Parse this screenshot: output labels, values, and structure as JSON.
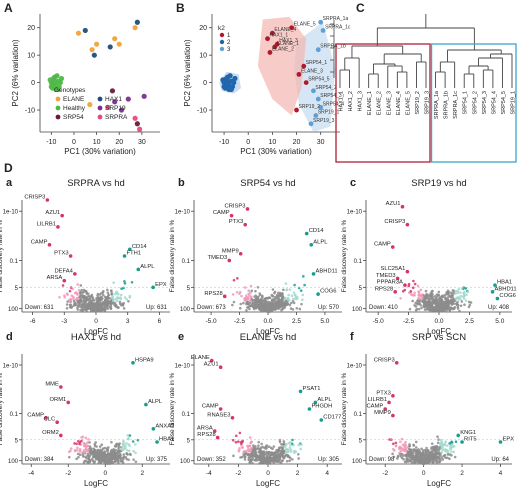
{
  "figure": {
    "row_letters": [
      "A",
      "B",
      "C",
      "D"
    ]
  },
  "colors": {
    "pink": "#D6336C",
    "pink_light": "#EE9ABB",
    "teal": "#139E8E",
    "teal_light": "#A3D9CE",
    "gray": "#8C8C8C",
    "elane": "#F0A33A",
    "hax1": "#1F4E79",
    "healthy": "#4FB848",
    "srp19": "#7A2E8E",
    "srp54": "#6B1A3E",
    "srpra": "#E84A78",
    "k1": "#B2182B",
    "k2": "#2166AC",
    "k3": "#5E9FD6",
    "hull_red": "#F4B6B0",
    "hull_blue": "#C5DCF0",
    "dendro_red": "#B21F3A",
    "dendro_blue": "#3AA7C8"
  },
  "chart_data": [
    {
      "panel": "A",
      "type": "scatter",
      "xlabel": "PC1 (30% variation)",
      "ylabel": "PC2 (6% variation)",
      "xlim": [
        -15,
        38
      ],
      "ylim": [
        -18,
        25
      ],
      "xticks": [
        "-10",
        "0",
        "10",
        "20",
        "30"
      ],
      "yticks": [
        "-10",
        "0",
        "10",
        "20"
      ],
      "legend_title": "Genotypes",
      "legend": [
        "ELANE",
        "HAX1",
        "Healthy",
        "SRP19",
        "SRP54",
        "SRPRA"
      ],
      "series": [
        {
          "name": "Healthy",
          "points": [
            [
              -10,
              0
            ],
            [
              -9,
              1.5
            ],
            [
              -8,
              -1
            ],
            [
              -7,
              0.5
            ],
            [
              -9.5,
              -2
            ],
            [
              -8.5,
              2
            ],
            [
              -6.5,
              -1.5
            ],
            [
              -10.5,
              1
            ],
            [
              -7.5,
              2.5
            ],
            [
              -8,
              -2.5
            ],
            [
              -6,
              0
            ],
            [
              -9,
              -0.5
            ],
            [
              -7,
              -2.5
            ],
            [
              -10,
              -1.5
            ],
            [
              -5.5,
              1.5
            ],
            [
              -8.5,
              0.5
            ]
          ]
        },
        {
          "name": "ELANE",
          "points": [
            [
              2,
              18
            ],
            [
              8,
              12
            ],
            [
              10,
              14
            ],
            [
              20,
              14
            ],
            [
              18,
              16
            ],
            [
              27,
              20
            ],
            [
              7,
              -8
            ]
          ]
        },
        {
          "name": "HAX1",
          "points": [
            [
              5,
              19
            ],
            [
              9,
              10
            ],
            [
              16,
              13
            ],
            [
              28,
              22
            ]
          ]
        },
        {
          "name": "SRP19",
          "points": [
            [
              18,
              -7
            ],
            [
              24,
              -6
            ],
            [
              21,
              -10
            ],
            [
              31,
              -5
            ]
          ]
        },
        {
          "name": "SRP54",
          "points": [
            [
              17,
              -3
            ],
            [
              28,
              -15
            ]
          ]
        },
        {
          "name": "SRPRA",
          "points": [
            [
              15,
              -9
            ],
            [
              27,
              -13
            ],
            [
              29,
              -17
            ]
          ]
        }
      ]
    },
    {
      "panel": "B",
      "type": "scatter",
      "xlabel": "PC1 (30% variation)",
      "ylabel": "PC2 (6% variation)",
      "xlim": [
        -15,
        38
      ],
      "ylim": [
        -18,
        25
      ],
      "xticks": [
        "-10",
        "0",
        "10",
        "20",
        "30"
      ],
      "yticks": [
        "-10",
        "0",
        "10",
        "20"
      ],
      "legend_title": "k2",
      "legend": [
        "1",
        "2",
        "3"
      ],
      "labels": [
        "SRPRA_1a",
        "ELANE_5",
        "SRPRA_1c",
        "ELANE_4",
        "HAX1_1",
        "HAX1_3",
        "ELANE_1",
        "SRPRA_1b",
        "ELANE_2",
        "SRP54_1",
        "ELANE_3",
        "SRP54_5",
        "SRP54_2",
        "SRP54_3",
        "SRP54_4",
        "SRP19_2",
        "SRP19_1",
        "SRP19_3"
      ]
    },
    {
      "panel": "C",
      "type": "dendrogram",
      "leaves_left": [
        "HAX1_1",
        "HAX1_2",
        "HAX1_3",
        "ELANE_1",
        "ELANE_2",
        "ELANE_3",
        "ELANE_4",
        "ELANE_5",
        "SRP19_2",
        "SRP19_3"
      ],
      "leaves_right": [
        "SRPRA_1a",
        "SRPRA_1b",
        "SRPRA_1c",
        "SRP54_1",
        "SRP54_2",
        "SRP54_3",
        "SRP54_4",
        "SRP54_5",
        "SRP19_1"
      ]
    },
    {
      "panel": "a",
      "type": "scatter",
      "subtype": "volcano",
      "title": "SRPRA vs hd",
      "xlabel": "LogFC",
      "ylabel": "False discovery rate in %",
      "xticks": [
        "-6",
        "-3",
        "0",
        "3",
        "6"
      ],
      "yticks": [
        "1e-10",
        "0.1",
        "5",
        "100"
      ],
      "down": "Down: 631",
      "up": "Up: 631",
      "genes": [
        "CRISP3",
        "AZU1",
        "LILRB1",
        "CAMP",
        "PTX3",
        "DEFA4",
        "ARSA",
        "CD14",
        "FTH1",
        "ALPL",
        "EPX"
      ]
    },
    {
      "panel": "b",
      "type": "scatter",
      "subtype": "volcano",
      "title": "SRP54 vs hd",
      "xlabel": "LogFC",
      "ylabel": "False discovery rate in %",
      "xticks": [
        "-5.0",
        "-2.5",
        "0.0",
        "2.5",
        "5.0"
      ],
      "yticks": [
        "1e-10",
        "0.1",
        "5",
        "100"
      ],
      "down": "Down: 673",
      "up": "Up: 570",
      "genes": [
        "CAMP",
        "CRISP3",
        "PTX3",
        "MMP9",
        "TMED3",
        "RPS28",
        "CD14",
        "ALPL",
        "ABHD11",
        "COG6"
      ]
    },
    {
      "panel": "c",
      "type": "scatter",
      "subtype": "volcano",
      "title": "SRP19 vs hd",
      "xlabel": "LogFC",
      "ylabel": "False discovery rate in %",
      "xticks": [
        "-5.0",
        "-2.5",
        "0.0",
        "2.5",
        "5.0"
      ],
      "yticks": [
        "1e-10",
        "0.1",
        "5",
        "100"
      ],
      "down": "Down: 410",
      "up": "Up: 408",
      "genes": [
        "AZU1",
        "CRISP3",
        "CAMP",
        "SLC25A1",
        "TMED3",
        "PPPAR3A",
        "RPS28",
        "HBA1",
        "ABHD11",
        "COG6"
      ]
    },
    {
      "panel": "d",
      "type": "scatter",
      "subtype": "volcano",
      "title": "HAX1 vs hd",
      "xlabel": "LogFC",
      "ylabel": "False discovery rate in %",
      "xticks": [
        "-4",
        "-2",
        "0",
        "2"
      ],
      "yticks": [
        "1e-10",
        "0.1",
        "5",
        "100"
      ],
      "down": "Down: 384",
      "up": "Up: 375",
      "genes": [
        "HSPA9",
        "MME",
        "ORM1",
        "CAMP",
        "CLC",
        "ORM2",
        "ALPL",
        "ANXA2",
        "HBA1"
      ]
    },
    {
      "panel": "e",
      "type": "scatter",
      "subtype": "volcano",
      "title": "ELANE vs hd",
      "xlabel": "LogFC",
      "ylabel": "False discovery rate in %",
      "xticks": [
        "-4",
        "-2",
        "0",
        "2",
        "4"
      ],
      "yticks": [
        "1e-10",
        "0.1",
        "5",
        "100"
      ],
      "down": "Down: 352",
      "up": "Up: 305",
      "genes": [
        "ELANE",
        "AZU1",
        "CAMP",
        "RNASE3",
        "ARSA",
        "RPS28",
        "PSAT1",
        "ALPL",
        "PHGDH",
        "CD177"
      ]
    },
    {
      "panel": "f",
      "type": "scatter",
      "subtype": "volcano",
      "title": "SRP vs SCN",
      "xlabel": "LogFC",
      "ylabel": "False discovery rate in %",
      "xticks": [
        "-2",
        "0",
        "2",
        "4"
      ],
      "yticks": [
        "1e-10",
        "0.1",
        "5",
        "100"
      ],
      "down": "Down: 98",
      "up": "Up: 64",
      "genes": [
        "CRISP3",
        "PTX3",
        "LILRB1",
        "CAMP",
        "MMP9",
        "KNG1",
        "RIT5",
        "EPX"
      ]
    }
  ]
}
